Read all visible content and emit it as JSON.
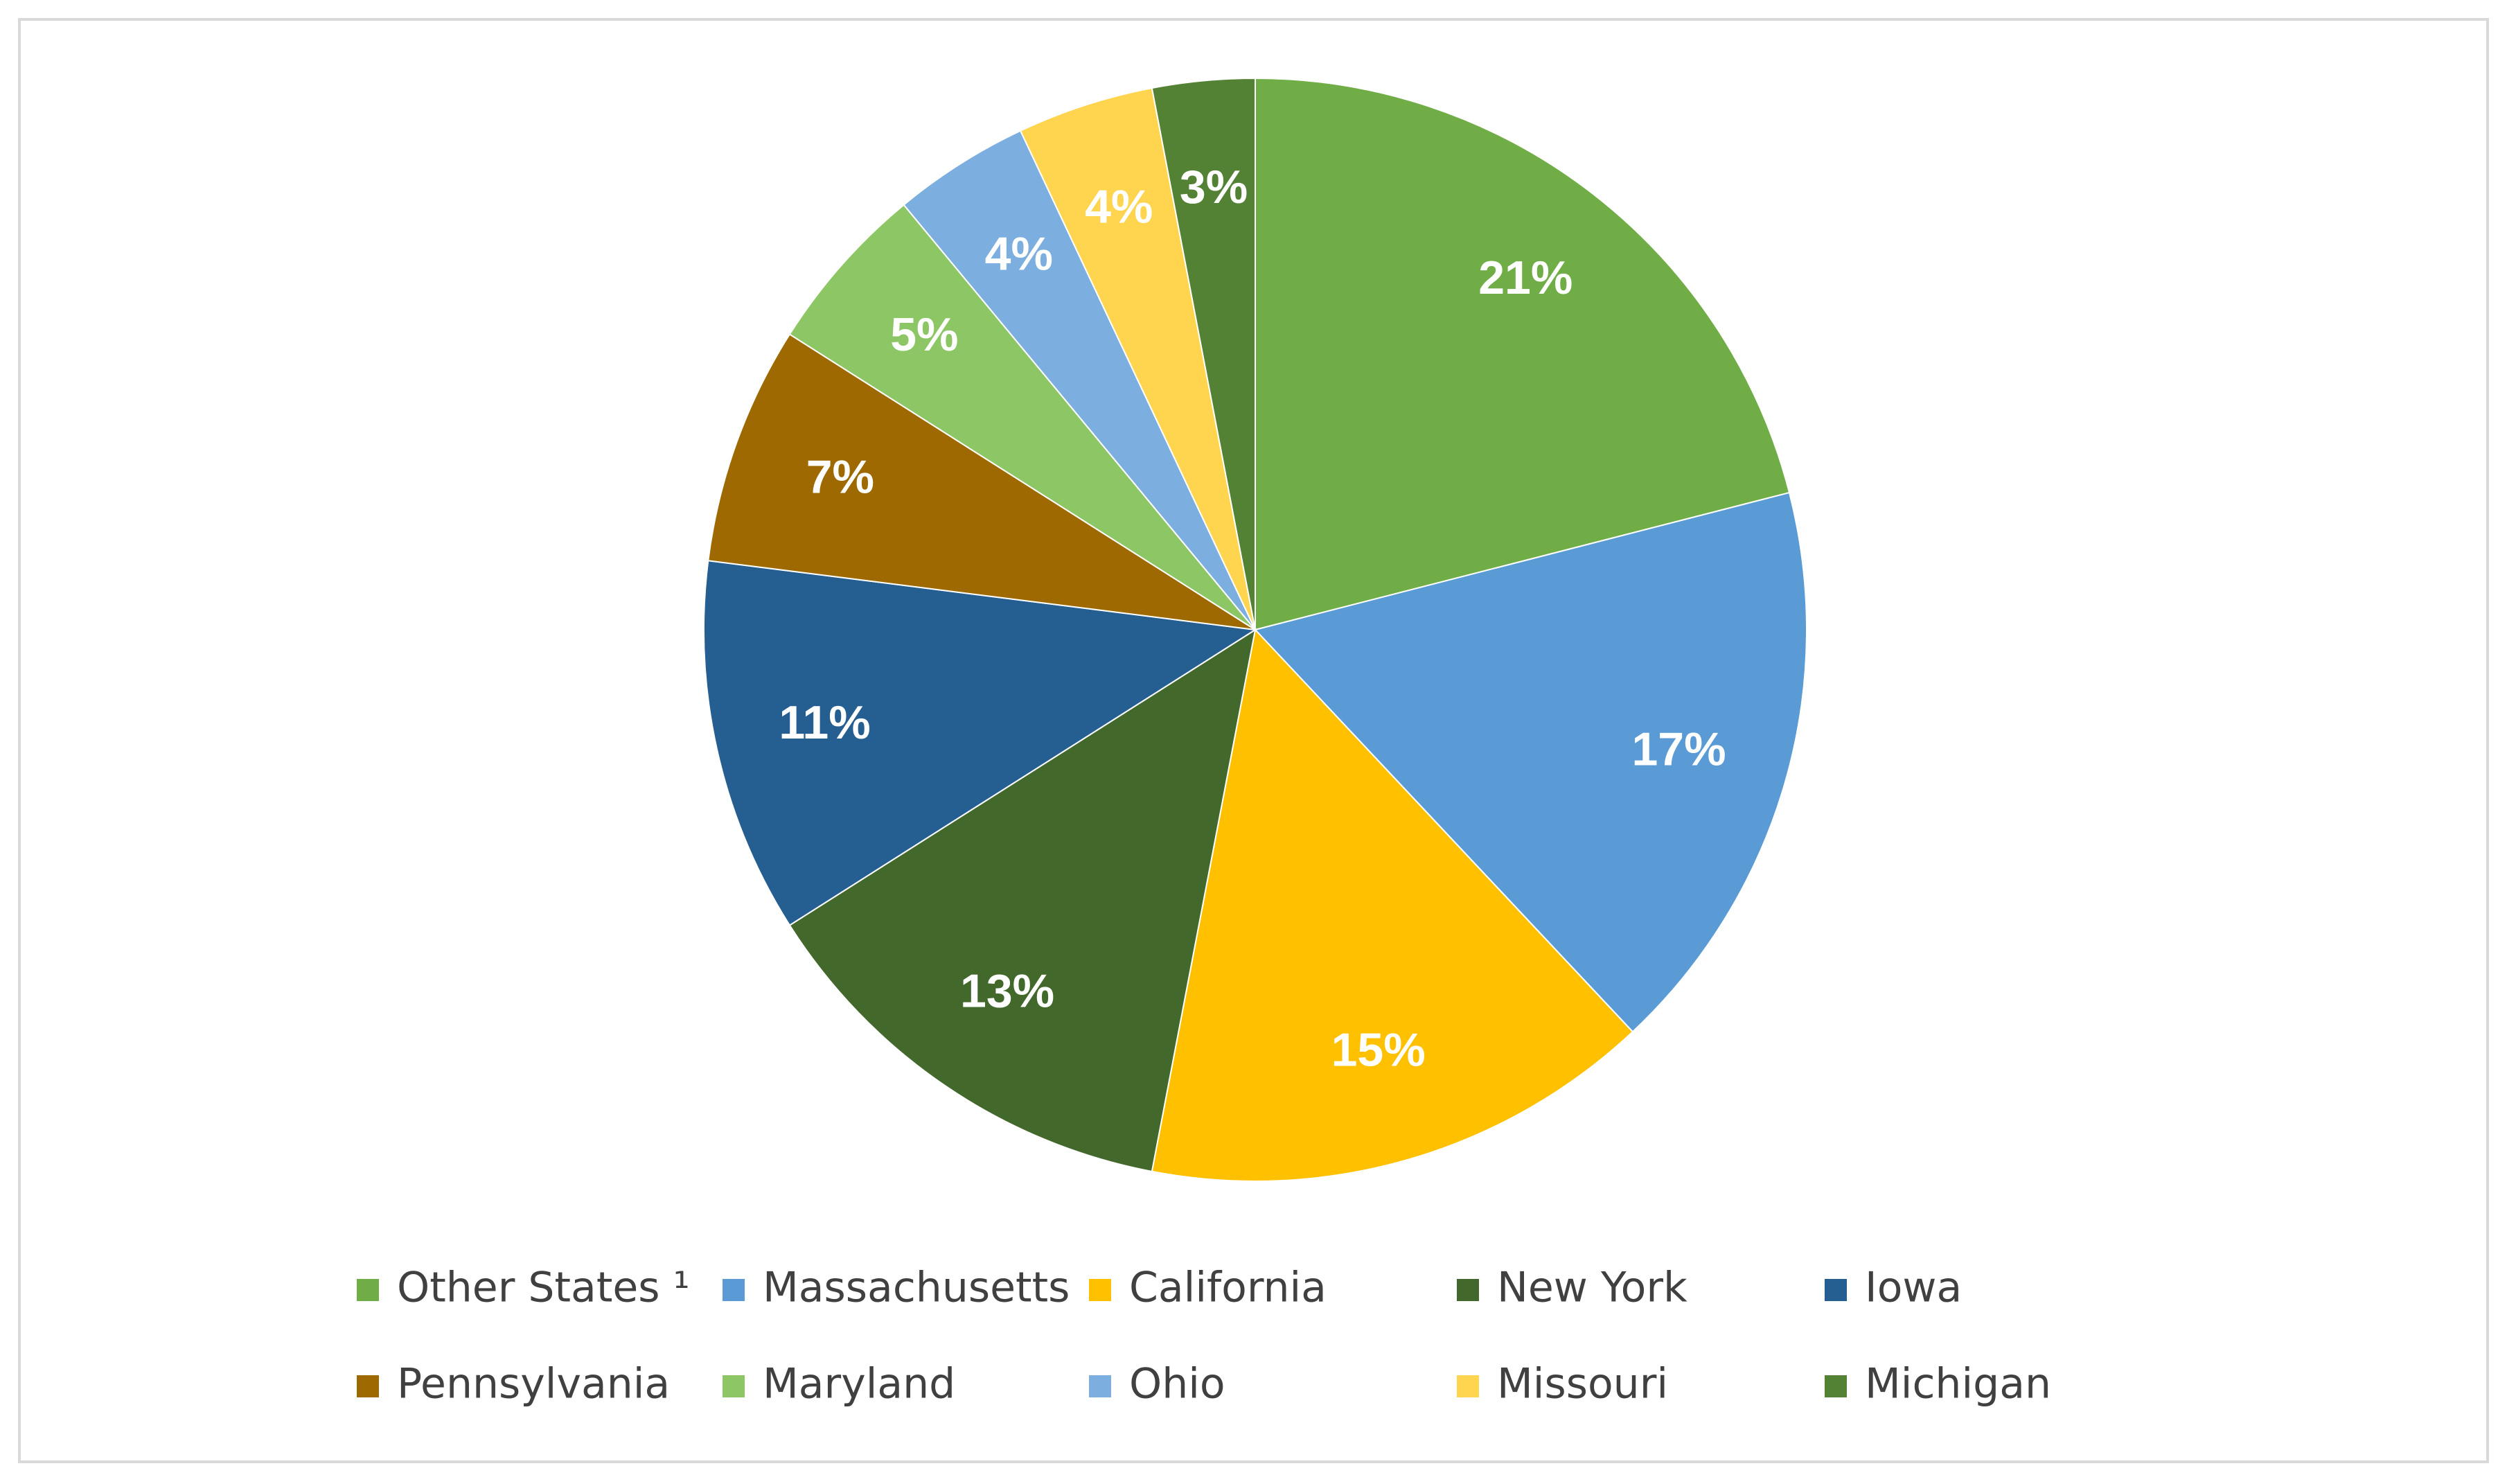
{
  "chart_data": {
    "type": "pie",
    "categories": [
      "Other States ¹",
      "Massachusetts",
      "California",
      "New York",
      "Iowa",
      "Pennsylvania",
      "Maryland",
      "Ohio",
      "Missouri",
      "Michigan"
    ],
    "values": [
      21,
      17,
      15,
      13,
      11,
      7,
      5,
      4,
      4,
      3
    ],
    "value_labels": [
      "21%",
      "17%",
      "15%",
      "13%",
      "11%",
      "7%",
      "5%",
      "4%",
      "4%",
      "3%"
    ],
    "colors": [
      "#70ad47",
      "#5b9bd5",
      "#ffc000",
      "#43682b",
      "#255e91",
      "#9e6a00",
      "#8cc665",
      "#7caee0",
      "#ffd44f",
      "#548235"
    ],
    "legend": "bottom"
  }
}
